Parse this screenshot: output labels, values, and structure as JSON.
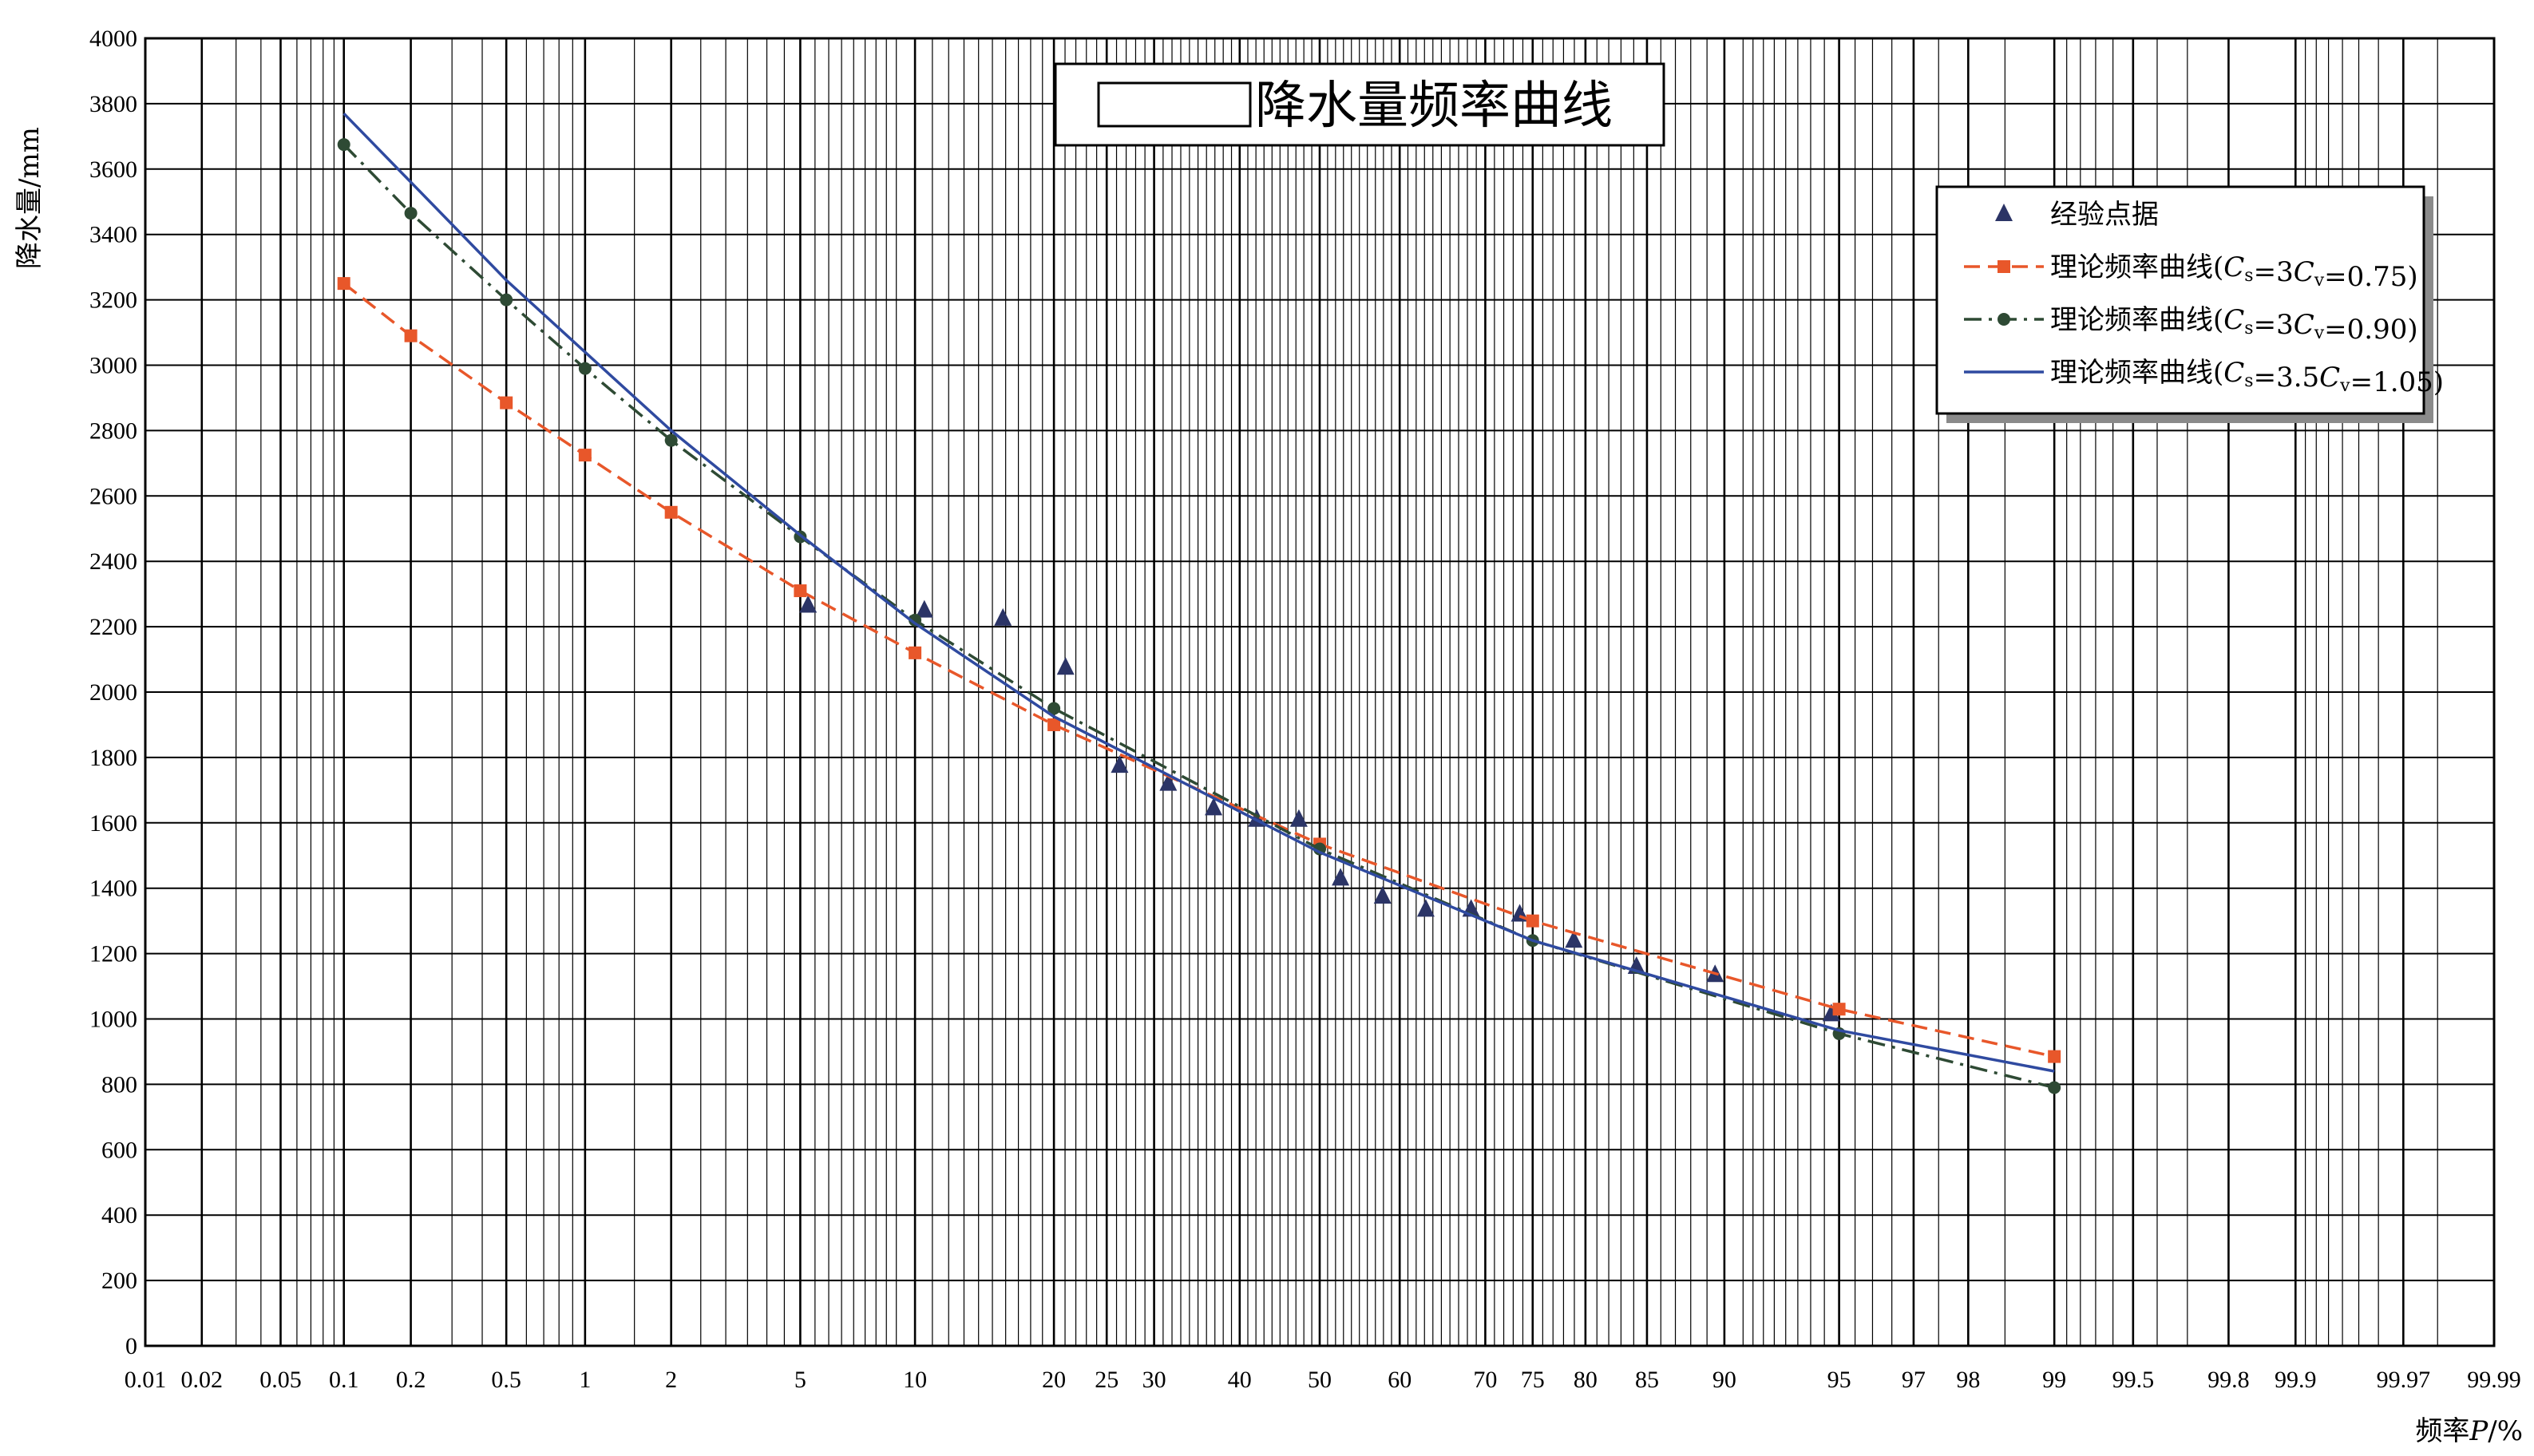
{
  "chart_data": {
    "type": "scatter",
    "title": "降水量频率曲线",
    "xlabel_main": "频率",
    "xlabel_symbol": "P",
    "xlabel_unit": "/%",
    "ylabel": "降水量/mm",
    "x_scale": "probability",
    "xlim": [
      0.01,
      99.99
    ],
    "ylim": [
      0,
      4000
    ],
    "grid": true,
    "legend_position": "top-right",
    "y_ticks": [
      0,
      200,
      400,
      600,
      800,
      1000,
      1200,
      1400,
      1600,
      1800,
      2000,
      2200,
      2400,
      2600,
      2800,
      3000,
      3200,
      3400,
      3600,
      3800,
      4000
    ],
    "x_ticks": [
      {
        "value": 0.01,
        "label": "0.01"
      },
      {
        "value": 0.02,
        "label": "0.02"
      },
      {
        "value": 0.05,
        "label": "0.05"
      },
      {
        "value": 0.1,
        "label": "0.1"
      },
      {
        "value": 0.2,
        "label": "0.2"
      },
      {
        "value": 0.5,
        "label": "0.5"
      },
      {
        "value": 1,
        "label": "1"
      },
      {
        "value": 2,
        "label": "2"
      },
      {
        "value": 5,
        "label": "5"
      },
      {
        "value": 10,
        "label": "10"
      },
      {
        "value": 20,
        "label": "20"
      },
      {
        "value": 25,
        "label": "25"
      },
      {
        "value": 30,
        "label": "30"
      },
      {
        "value": 40,
        "label": "40"
      },
      {
        "value": 50,
        "label": "50"
      },
      {
        "value": 60,
        "label": "60"
      },
      {
        "value": 70,
        "label": "70"
      },
      {
        "value": 75,
        "label": "75"
      },
      {
        "value": 80,
        "label": "80"
      },
      {
        "value": 85,
        "label": "85"
      },
      {
        "value": 90,
        "label": "90"
      },
      {
        "value": 95,
        "label": "95"
      },
      {
        "value": 97,
        "label": "97"
      },
      {
        "value": 98,
        "label": "98"
      },
      {
        "value": 99,
        "label": "99"
      },
      {
        "value": 99.5,
        "label": "99.5"
      },
      {
        "value": 99.8,
        "label": "99.8"
      },
      {
        "value": 99.9,
        "label": "99.9"
      },
      {
        "value": 99.97,
        "label": "99.97"
      },
      {
        "value": 99.99,
        "label": "99.99"
      }
    ],
    "series": [
      {
        "name": "经验点据",
        "kind": "points",
        "color": "#2b3466",
        "marker": "triangle",
        "x": [
          5.26,
          10.53,
          15.79,
          21.05,
          26.32,
          31.58,
          36.84,
          42.11,
          47.37,
          52.63,
          57.89,
          63.16,
          68.42,
          73.68,
          78.95,
          84.21,
          89.47,
          94.74
        ],
        "y": [
          2265,
          2250,
          2225,
          2075,
          1775,
          1720,
          1645,
          1610,
          1610,
          1430,
          1375,
          1335,
          1335,
          1320,
          1240,
          1160,
          1135,
          1015
        ]
      },
      {
        "name": "理论频率曲线(Cs=3Cv=0.75)",
        "legend_prefix": "理论频率曲线(",
        "legend_params": "=3",
        "legend_value": "=0.75)",
        "kind": "dashed",
        "color": "#e8572a",
        "marker": "square",
        "x": [
          0.1,
          0.2,
          0.5,
          1,
          2,
          5,
          10,
          20,
          50,
          75,
          95,
          99
        ],
        "y": [
          3250,
          3090,
          2885,
          2725,
          2550,
          2310,
          2120,
          1900,
          1535,
          1300,
          1030,
          885
        ]
      },
      {
        "name": "理论频率曲线(Cs=3Cv=0.90)",
        "legend_prefix": "理论频率曲线(",
        "legend_params": "=3",
        "legend_value": "=0.90)",
        "kind": "dashdot",
        "color": "#2e4a34",
        "marker": "circle",
        "x": [
          0.1,
          0.2,
          0.5,
          1,
          2,
          5,
          10,
          20,
          50,
          75,
          95,
          99
        ],
        "y": [
          3675,
          3465,
          3200,
          2990,
          2770,
          2475,
          2220,
          1950,
          1520,
          1240,
          955,
          790
        ]
      },
      {
        "name": "理论频率曲线(Cs=3.5Cv=1.05)",
        "legend_prefix": "理论频率曲线(",
        "legend_params": "=3.5",
        "legend_value": "=1.05)",
        "kind": "solid",
        "color": "#2f4aa0",
        "marker": "none",
        "x": [
          0.1,
          0.2,
          0.5,
          1,
          2,
          5,
          10,
          20,
          50,
          75,
          95,
          99
        ],
        "y": [
          3770,
          3560,
          3260,
          3040,
          2800,
          2480,
          2210,
          1925,
          1510,
          1240,
          965,
          840
        ]
      }
    ]
  }
}
